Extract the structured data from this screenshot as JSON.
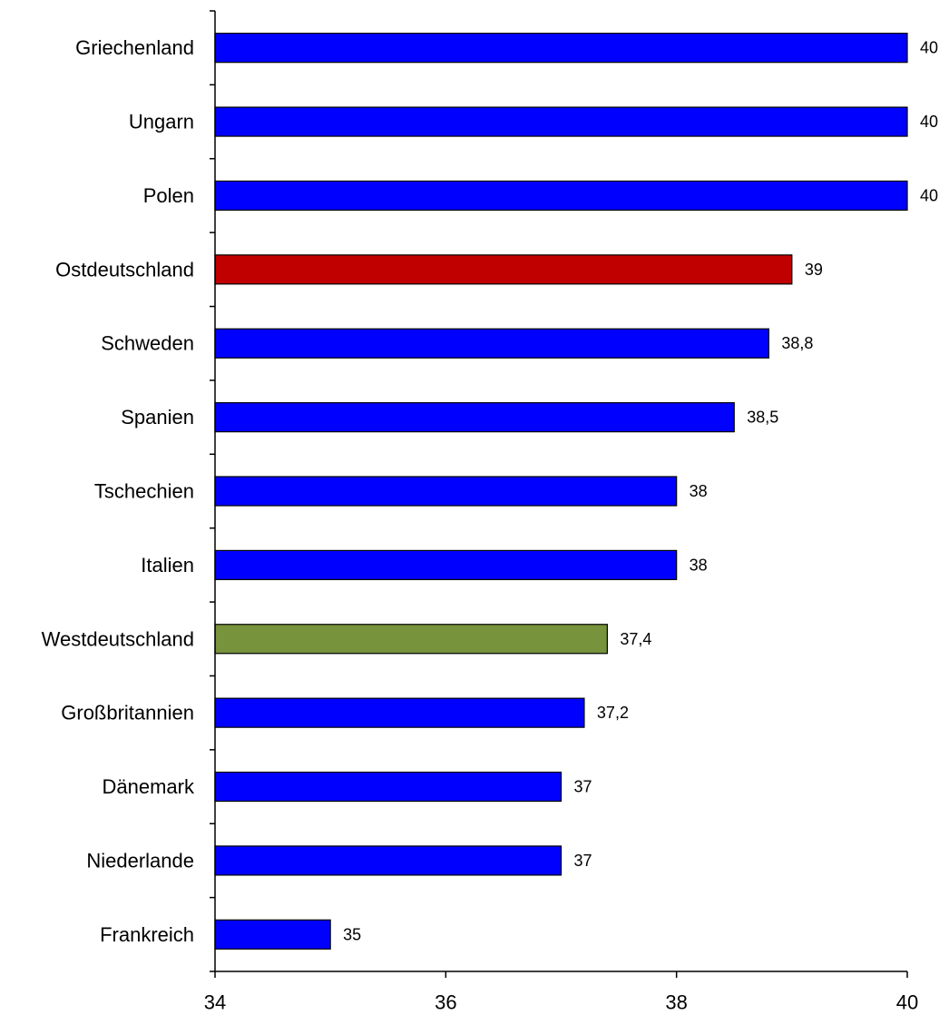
{
  "chart_data": {
    "type": "bar",
    "orientation": "horizontal",
    "title": "",
    "xlabel": "",
    "ylabel": "",
    "categories": [
      "Griechenland",
      "Ungarn",
      "Polen",
      "Ostdeutschland",
      "Schweden",
      "Spanien",
      "Tschechien",
      "Italien",
      "Westdeutschland",
      "Großbritannien",
      "Dänemark",
      "Niederlande",
      "Frankreich"
    ],
    "values": [
      40,
      40,
      40,
      39,
      38.8,
      38.5,
      38,
      38,
      37.4,
      37.2,
      37,
      37,
      35
    ],
    "value_labels": [
      "40",
      "40",
      "40",
      "39",
      "38,8",
      "38,5",
      "38",
      "38",
      "37,4",
      "37,2",
      "37",
      "37",
      "35"
    ],
    "bar_colors": [
      "#0000ff",
      "#0000ff",
      "#0000ff",
      "#c00000",
      "#0000ff",
      "#0000ff",
      "#0000ff",
      "#0000ff",
      "#77933c",
      "#0000ff",
      "#0000ff",
      "#0000ff",
      "#0000ff"
    ],
    "xlim": [
      34,
      40
    ],
    "xticks": [
      34,
      36,
      38,
      40
    ],
    "xtick_labels": [
      "34",
      "36",
      "38",
      "40"
    ],
    "grid": false,
    "legend": "none"
  }
}
